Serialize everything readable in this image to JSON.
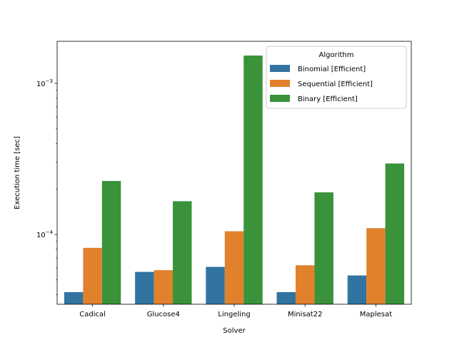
{
  "chart_data": {
    "type": "bar",
    "xlabel": "Solver",
    "ylabel": "Execution time [sec]",
    "yscale": "log",
    "ylim": [
      3.45e-05,
      0.0019
    ],
    "y_major_ticks": [
      {
        "value": 0.0001,
        "base": "10",
        "exp": "−4"
      },
      {
        "value": 0.001,
        "base": "10",
        "exp": "−3"
      }
    ],
    "y_minor_ticks": [
      4e-05,
      5e-05,
      6e-05,
      7e-05,
      8e-05,
      9e-05,
      0.0002,
      0.0003,
      0.0004,
      0.0005,
      0.0006,
      0.0007,
      0.0008,
      0.0009
    ],
    "categories": [
      "Cadical",
      "Glucose4",
      "Lingeling",
      "Minisat22",
      "Maplesat"
    ],
    "series": [
      {
        "name": "Binomial [Efficient]",
        "color": "#3274a1",
        "values": [
          4.15e-05,
          5.65e-05,
          6.1e-05,
          4.15e-05,
          5.35e-05
        ]
      },
      {
        "name": "Sequential [Efficient]",
        "color": "#e1812c",
        "values": [
          8.15e-05,
          5.8e-05,
          0.000105,
          6.25e-05,
          0.00011
        ]
      },
      {
        "name": "Binary [Efficient]",
        "color": "#3a923a",
        "values": [
          0.000226,
          0.000166,
          0.00153,
          0.00019,
          0.000295
        ]
      }
    ],
    "legend": {
      "title": "Algorithm",
      "position": "top-right"
    },
    "grid": false
  }
}
